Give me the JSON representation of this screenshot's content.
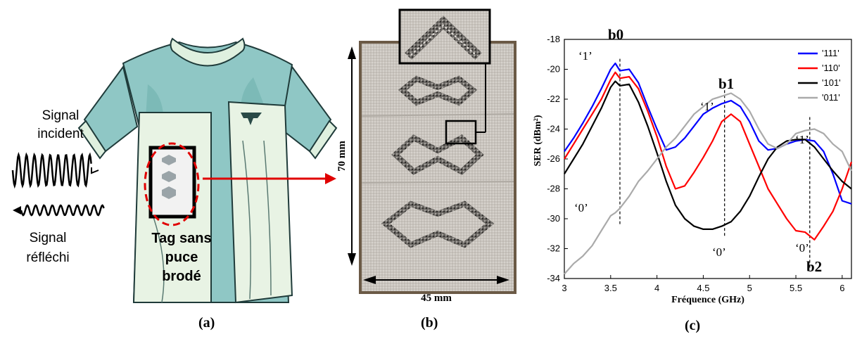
{
  "panel_a": {
    "label": "(a)",
    "incident_label_1": "Signal",
    "incident_label_2": "incident",
    "reflected_label_1": "Signal",
    "reflected_label_2": "réfléchi",
    "tag_line_1": "Tag sans",
    "tag_line_2": "puce",
    "tag_line_3": "brodé"
  },
  "panel_b": {
    "label": "(b)",
    "height_dim": "70 mm",
    "width_dim": "45 mm"
  },
  "panel_c": {
    "label": "(c)",
    "marker_labels": [
      "b0",
      "b1",
      "b2"
    ],
    "bit_one": "‘1’",
    "bit_zero": "‘0’"
  },
  "chart_data": {
    "type": "line",
    "title": "",
    "xlabel": "Fréquence (GHz)",
    "ylabel": "SER (dBm²)",
    "xlim": [
      3,
      6.1
    ],
    "ylim": [
      -34,
      -18
    ],
    "xticks": [
      3,
      3.5,
      4,
      4.5,
      5,
      5.5,
      6
    ],
    "yticks": [
      -34,
      -32,
      -30,
      -28,
      -26,
      -24,
      -22,
      -20,
      -18
    ],
    "xtick_labels": [
      "3",
      "3.5",
      "4",
      "4.5",
      "5",
      "5.5",
      "6"
    ],
    "ytick_labels": [
      "-34",
      "-32",
      "-30",
      "-28",
      "-26",
      "-24",
      "-22",
      "-20",
      "-18"
    ],
    "grid": false,
    "legend_position": "top-right",
    "markers": [
      {
        "name": "b0",
        "x": 3.6
      },
      {
        "name": "b1",
        "x": 4.73
      },
      {
        "name": "b2",
        "x": 5.65
      }
    ],
    "series": [
      {
        "name": "'111'",
        "color": "#0000ff",
        "x": [
          3.0,
          3.1,
          3.2,
          3.3,
          3.4,
          3.5,
          3.55,
          3.6,
          3.7,
          3.8,
          3.9,
          4.0,
          4.1,
          4.2,
          4.3,
          4.4,
          4.5,
          4.6,
          4.7,
          4.8,
          4.9,
          5.0,
          5.1,
          5.2,
          5.3,
          5.4,
          5.5,
          5.6,
          5.7,
          5.8,
          5.9,
          6.0,
          6.1
        ],
        "y": [
          -25.5,
          -24.6,
          -23.6,
          -22.5,
          -21.3,
          -20.0,
          -19.6,
          -20.1,
          -20.0,
          -20.9,
          -22.5,
          -24.0,
          -25.4,
          -25.2,
          -24.6,
          -23.8,
          -23.0,
          -22.6,
          -22.3,
          -22.1,
          -22.5,
          -23.5,
          -24.8,
          -25.4,
          -25.3,
          -25.0,
          -24.8,
          -24.7,
          -24.8,
          -25.5,
          -27.0,
          -28.8,
          -29.0
        ]
      },
      {
        "name": "'110'",
        "color": "#ff0000",
        "x": [
          3.0,
          3.1,
          3.2,
          3.3,
          3.4,
          3.5,
          3.55,
          3.6,
          3.7,
          3.8,
          3.9,
          4.0,
          4.1,
          4.2,
          4.3,
          4.4,
          4.5,
          4.6,
          4.7,
          4.8,
          4.9,
          5.0,
          5.1,
          5.2,
          5.3,
          5.4,
          5.5,
          5.6,
          5.7,
          5.8,
          5.9,
          6.0,
          6.1
        ],
        "y": [
          -26.0,
          -25.0,
          -24.0,
          -23.0,
          -22.0,
          -20.7,
          -20.2,
          -20.6,
          -20.5,
          -21.3,
          -22.8,
          -24.5,
          -26.5,
          -28.0,
          -27.8,
          -26.9,
          -25.9,
          -24.8,
          -23.5,
          -23.0,
          -23.5,
          -25.0,
          -26.5,
          -28.0,
          -29.0,
          -30.0,
          -30.8,
          -30.9,
          -31.4,
          -30.5,
          -29.5,
          -28.0,
          -26.2
        ]
      },
      {
        "name": "'101'",
        "color": "#000000",
        "x": [
          3.0,
          3.1,
          3.2,
          3.3,
          3.4,
          3.5,
          3.55,
          3.6,
          3.7,
          3.8,
          3.9,
          4.0,
          4.1,
          4.2,
          4.3,
          4.4,
          4.5,
          4.6,
          4.7,
          4.8,
          4.9,
          5.0,
          5.1,
          5.2,
          5.3,
          5.4,
          5.5,
          5.6,
          5.7,
          5.8,
          5.9,
          6.0,
          6.1
        ],
        "y": [
          -27.0,
          -26.0,
          -25.0,
          -23.8,
          -22.6,
          -21.2,
          -20.8,
          -21.1,
          -21.0,
          -22.2,
          -23.8,
          -25.6,
          -27.5,
          -29.1,
          -30.0,
          -30.5,
          -30.7,
          -30.7,
          -30.5,
          -30.2,
          -29.5,
          -28.5,
          -27.2,
          -26.0,
          -25.2,
          -24.8,
          -24.7,
          -24.7,
          -25.2,
          -26.0,
          -26.8,
          -27.5,
          -28.0
        ]
      },
      {
        "name": "'011'",
        "color": "#aaaaaa",
        "x": [
          3.0,
          3.1,
          3.2,
          3.3,
          3.4,
          3.5,
          3.55,
          3.6,
          3.7,
          3.8,
          3.9,
          4.0,
          4.1,
          4.2,
          4.3,
          4.4,
          4.5,
          4.6,
          4.7,
          4.8,
          4.9,
          5.0,
          5.1,
          5.2,
          5.3,
          5.4,
          5.5,
          5.6,
          5.7,
          5.8,
          5.9,
          6.0,
          6.1
        ],
        "y": [
          -33.7,
          -33.0,
          -32.5,
          -31.8,
          -30.8,
          -29.8,
          -29.6,
          -29.3,
          -28.5,
          -27.5,
          -26.8,
          -26.0,
          -25.2,
          -24.6,
          -23.8,
          -23.0,
          -22.5,
          -22.0,
          -21.8,
          -21.6,
          -22.0,
          -22.8,
          -24.0,
          -25.0,
          -25.3,
          -25.0,
          -24.3,
          -24.1,
          -24.0,
          -24.3,
          -25.0,
          -25.5,
          -26.8
        ]
      }
    ]
  }
}
